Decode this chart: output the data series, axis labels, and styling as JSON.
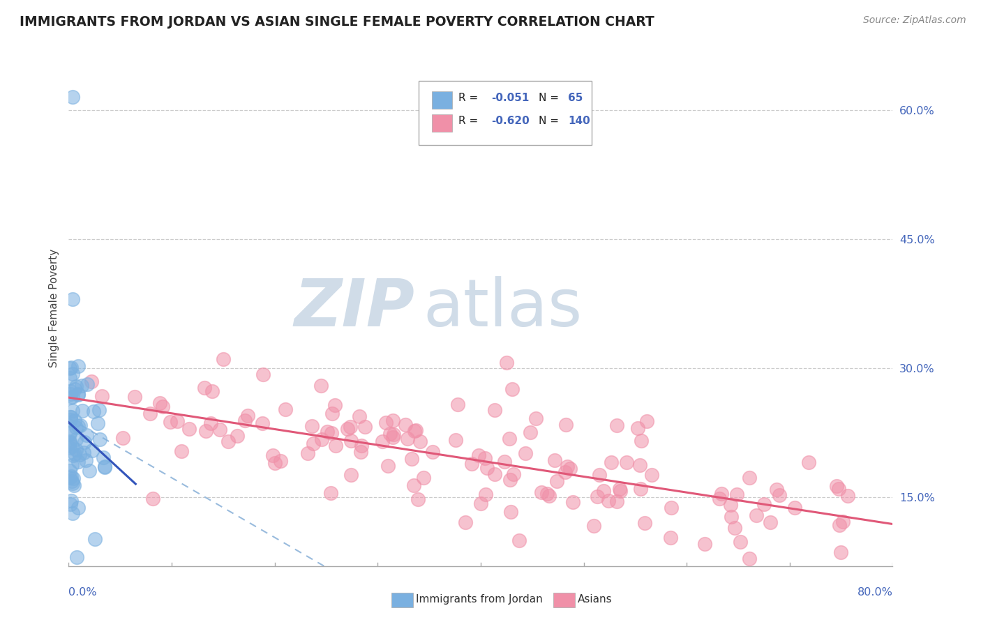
{
  "title": "IMMIGRANTS FROM JORDAN VS ASIAN SINGLE FEMALE POVERTY CORRELATION CHART",
  "source": "Source: ZipAtlas.com",
  "ylabel": "Single Female Poverty",
  "right_yticks": [
    0.15,
    0.3,
    0.45,
    0.6
  ],
  "right_yticklabels": [
    "15.0%",
    "30.0%",
    "45.0%",
    "60.0%"
  ],
  "xlim": [
    0.0,
    0.8
  ],
  "ylim": [
    0.07,
    0.67
  ],
  "blue_R": -0.051,
  "blue_N": 65,
  "pink_R": -0.62,
  "pink_N": 140,
  "blue_color": "#7ab0e0",
  "pink_color": "#f090a8",
  "blue_line_color": "#3355bb",
  "pink_line_color": "#e05878",
  "dashed_line_color": "#99bbdd",
  "watermark_zip": "ZIP",
  "watermark_atlas": "atlas",
  "watermark_color": "#d0dce8",
  "blue_scatter_seed": 42,
  "pink_scatter_seed": 123
}
